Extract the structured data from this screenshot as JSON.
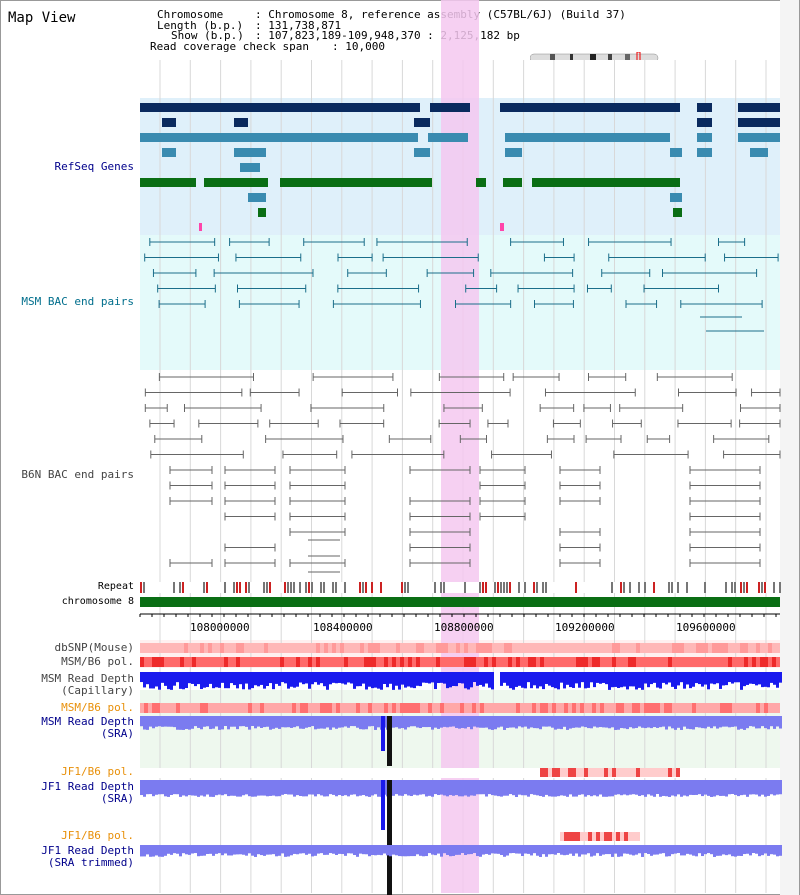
{
  "header": {
    "title": "Map View",
    "chromosome_label": "Chromosome",
    "chromosome_value": ": Chromosome 8, reference assembly (C57BL/6J) (Build 37)",
    "length_label": "Length (b.p.)",
    "length_value": ": 131,738,871",
    "show_label": "Show (b.p.)",
    "show_value": ": 107,823,189-109,948,370 : 2,125,182 bp",
    "coverage_label": "Read coverage check span",
    "coverage_value": ": 10,000"
  },
  "tracks": {
    "refseq": "RefSeq Genes",
    "msm_bac": "MSM BAC end pairs",
    "b6n_bac": "B6N BAC end pairs",
    "repeat": "Repeat",
    "chromosome": "chromosome 8",
    "dbsnp": "dbSNP(Mouse)",
    "msm_b6_pol_1": "MSM/B6 pol.",
    "msm_depth_cap_1": "MSM Read Depth",
    "msm_depth_cap_2": "(Capillary)",
    "msm_b6_pol_2": "MSM/B6 pol.",
    "msm_depth_sra_1": "MSM Read Depth",
    "msm_depth_sra_2": "(SRA)",
    "jf1_b6_pol_1": "JF1/B6 pol.",
    "jf1_depth_sra_1": "JF1 Read Depth",
    "jf1_depth_sra_2": "(SRA)",
    "jf1_b6_pol_2": "JF1/B6 pol.",
    "jf1_depth_trim_1": "JF1 Read Depth",
    "jf1_depth_trim_2": "(SRA trimmed)"
  },
  "axis": {
    "ticks": [
      "108000000",
      "108400000",
      "108800000",
      "109200000",
      "109600000"
    ]
  },
  "colors": {
    "highlight": "#f5c8f0",
    "refseq_bg": "#dff0fa",
    "msm_bg": "#e4fafa",
    "gene_navy": "#0a2a5e",
    "gene_light": "#3a8bb0",
    "gene_green": "#0a6e14",
    "chromosome_bar": "#0a6e14",
    "depth_blue": "#1a1aee",
    "depth_violet": "#7b7bf0"
  }
}
